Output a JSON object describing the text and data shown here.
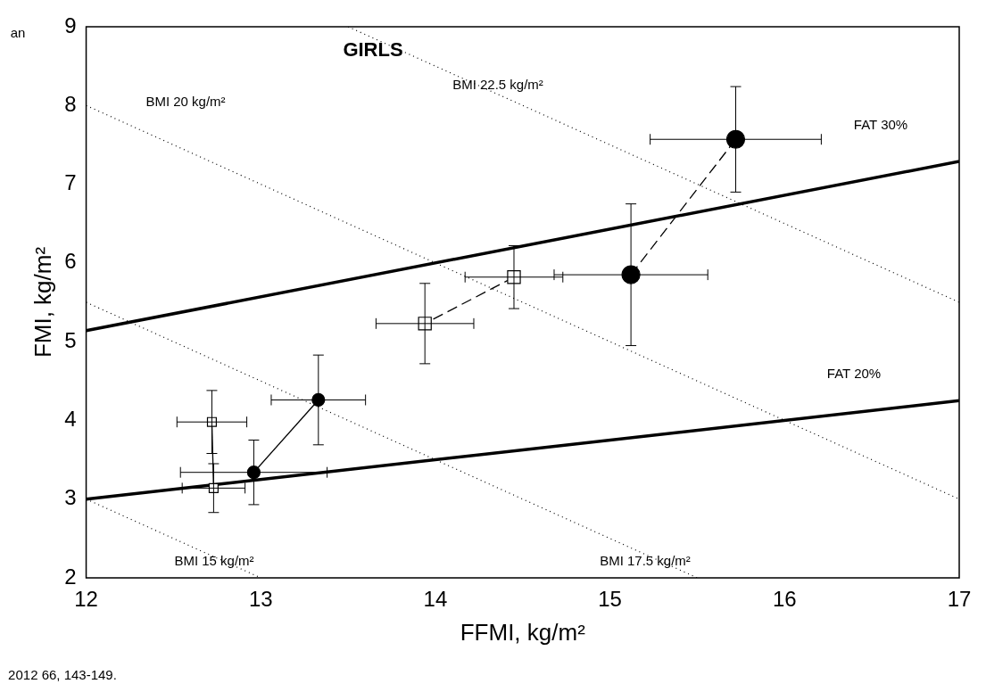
{
  "chart_data": {
    "type": "line",
    "xlabel": "FFMI, kg/m²",
    "ylabel": "FMI, kg/m²",
    "xlim": [
      12,
      17
    ],
    "xticks": [
      12,
      13,
      14,
      15,
      16,
      17
    ],
    "ylim": [
      2,
      9
    ],
    "yticks": [
      2,
      3,
      4,
      5,
      6,
      7,
      8,
      9
    ],
    "grid": false,
    "legend": false,
    "series": [
      {
        "color": "#000000",
        "marker": "circle",
        "line_style": "dashed",
        "x": [
          15.72,
          15.12
        ],
        "values": [
          7.57,
          5.85
        ],
        "errors": [
          0.67,
          0.9
        ],
        "xerrors": [
          0.49,
          0.44
        ]
      },
      {
        "color": "#000000",
        "marker": "square",
        "line_style": "dashed",
        "x": [
          14.45,
          13.94
        ],
        "values": [
          5.82,
          5.23
        ],
        "errors": [
          0.4,
          0.51
        ],
        "xerrors": [
          0.28,
          0.28
        ]
      },
      {
        "color": "#000000",
        "marker": "circle",
        "line_style": "solid",
        "x": [
          13.33,
          12.96
        ],
        "values": [
          4.26,
          3.34
        ],
        "errors": [
          0.57,
          0.41
        ],
        "xerrors": [
          0.27,
          0.42
        ]
      },
      {
        "color": "#000000",
        "marker": "square",
        "line_style": "solid",
        "x": [
          12.72,
          12.73
        ],
        "values": [
          3.98,
          3.14
        ],
        "errors": [
          0.4,
          0.31
        ],
        "xerrors": [
          0.2,
          0.18
        ]
      },
      {
        "color": "#000000",
        "marker": "none",
        "line_style": "solid",
        "x": [
          12,
          17
        ],
        "values": [
          5.14,
          7.29
        ]
      },
      {
        "color": "#000000",
        "marker": "none",
        "line_style": "solid",
        "x": [
          12,
          17
        ],
        "values": [
          3,
          4.25
        ]
      },
      {
        "color": "#000000",
        "marker": "none",
        "line_style": "dotted",
        "x": [
          12,
          13
        ],
        "values": [
          3,
          2
        ]
      },
      {
        "color": "#000000",
        "marker": "none",
        "line_style": "dotted",
        "x": [
          12,
          15.5
        ],
        "values": [
          5.5,
          2
        ]
      },
      {
        "color": "#000000",
        "marker": "none",
        "line_style": "dotted",
        "x": [
          12,
          17
        ],
        "values": [
          8,
          3
        ]
      },
      {
        "color": "#000000",
        "marker": "none",
        "line_style": "dotted",
        "x": [
          13.5,
          17
        ],
        "values": [
          9,
          5.5
        ]
      }
    ],
    "annotations": [
      "GIRLS",
      "FAT 30%",
      "FAT 20%",
      "BMI 22.5 kg/m²",
      "BMI 20 kg/m²",
      "BMI 17.5 kg/m²",
      "BMI 15 kg/m²",
      "an",
      "2012 66, 143-149."
    ]
  }
}
